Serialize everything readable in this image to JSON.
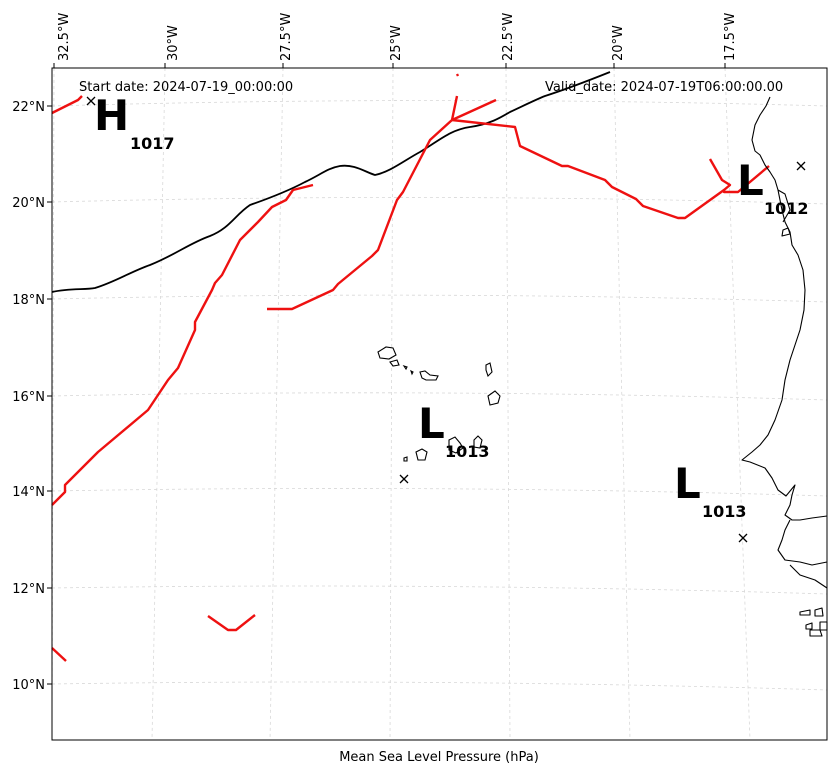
{
  "header": {
    "start_date": "Start date: 2024-07-19_00:00:00",
    "valid_date": "Valid_date: 2024-07-19T06:00:00.00"
  },
  "caption": "Mean Sea Level Pressure (hPa)",
  "lon_labels": [
    "32.5°W",
    "30°W",
    "27.5°W",
    "25°W",
    "22.5°W",
    "20°W",
    "17.5°W"
  ],
  "lat_labels": [
    "22°N",
    "20°N",
    "18°N",
    "16°N",
    "14°N",
    "12°N",
    "10°N"
  ],
  "pressure_systems": [
    {
      "letter": "H",
      "value": "1017"
    },
    {
      "letter": "L",
      "value": "1012"
    },
    {
      "letter": "L",
      "value": "1013"
    },
    {
      "letter": "L",
      "value": "1013"
    }
  ],
  "colors": {
    "trough_lines": "#ee1111",
    "isobar": "#000000",
    "coastline": "#000000",
    "gridline": "#cccccc"
  }
}
